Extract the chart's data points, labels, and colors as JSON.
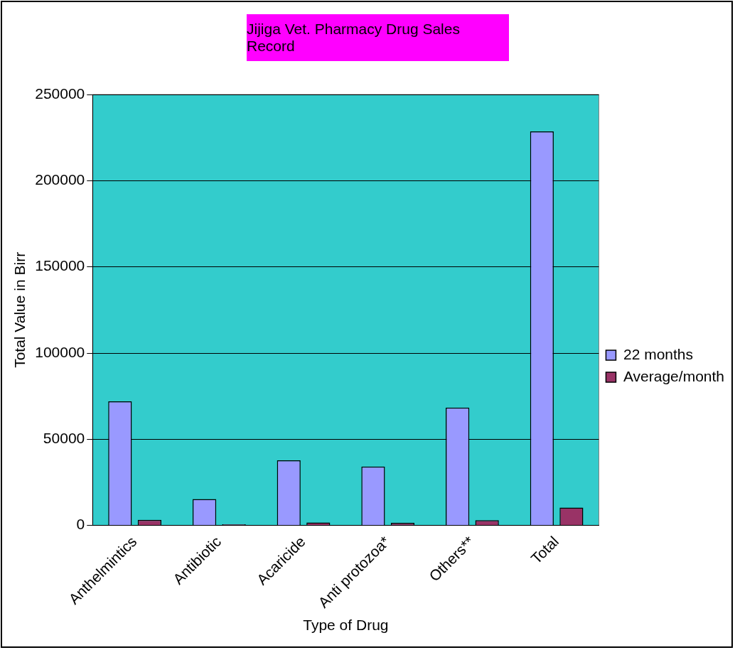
{
  "chart_data": {
    "type": "bar",
    "title": "Jijiga Vet. Pharmacy Drug Sales Record",
    "xlabel": "Type of Drug",
    "ylabel": "Total Value in Birr",
    "categories": [
      "Anthelmintics",
      "Antibiotic",
      "Acaricide",
      "Anti protozoa*",
      "Others**",
      "Total"
    ],
    "series": [
      {
        "name": "22 months",
        "color": "#9999ff",
        "values": [
          72000,
          15300,
          37800,
          34200,
          68400,
          228600
        ]
      },
      {
        "name": "Average/month",
        "color": "#993366",
        "values": [
          3300,
          700,
          1700,
          1550,
          3100,
          10400
        ]
      }
    ],
    "ylim": [
      0,
      250000
    ],
    "yticks": [
      0,
      50000,
      100000,
      150000,
      200000,
      250000
    ],
    "grid": "y",
    "legend": "right"
  }
}
